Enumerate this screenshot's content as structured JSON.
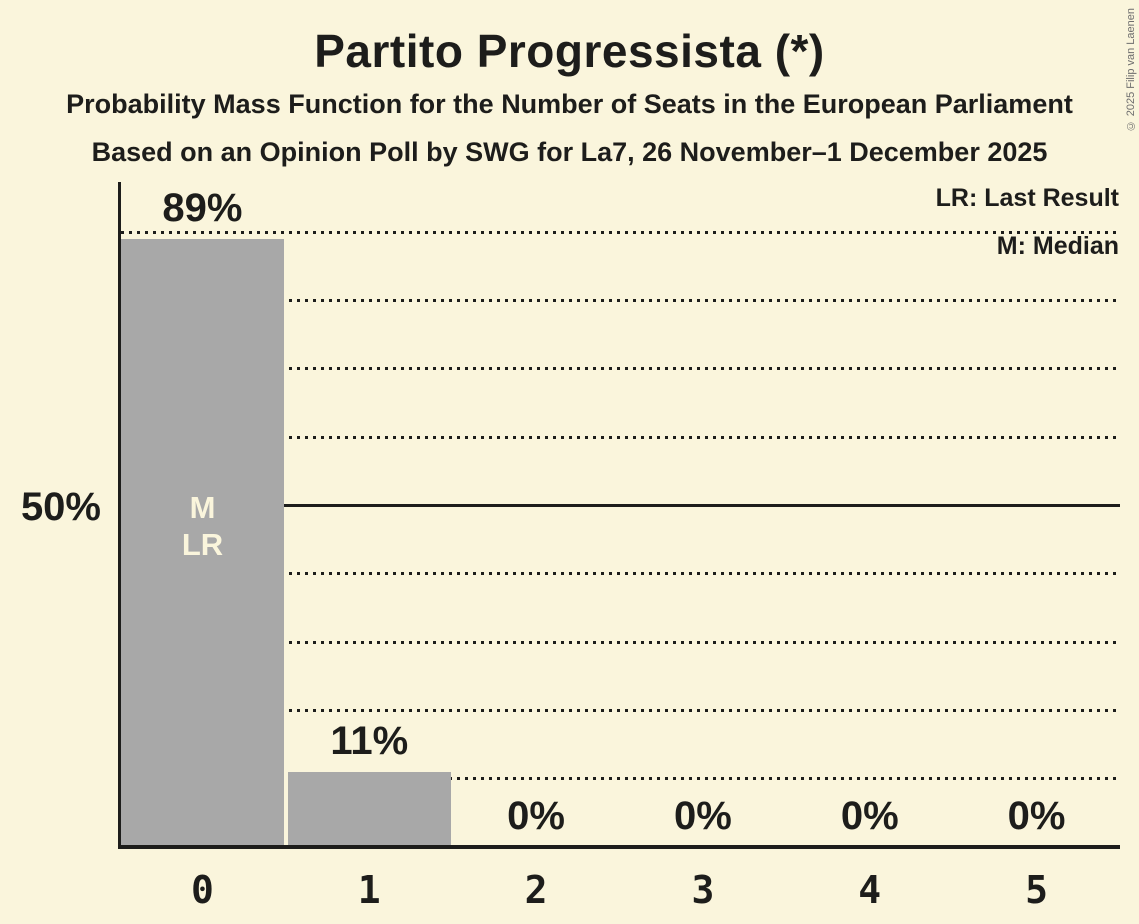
{
  "title": "Partito Progressista (*)",
  "subtitle1": "Probability Mass Function for the Number of Seats in the European Parliament",
  "subtitle2": "Based on an Opinion Poll by SWG for La7, 26 November–1 December 2025",
  "copyright": "© 2025 Filip van Laenen",
  "legend": {
    "lr": "LR: Last Result",
    "m": "M: Median"
  },
  "y_axis_label": "50%",
  "bar_annotations": {
    "median": "M",
    "last_result": "LR"
  },
  "colors": {
    "background": "#FAF5DC",
    "bar": "#A8A8A8",
    "text": "#1D1D1B",
    "copyright_text": "#6E6E6E"
  },
  "chart_data": {
    "type": "bar",
    "title": "Partito Progressista (*)",
    "categories": [
      "0",
      "1",
      "2",
      "3",
      "4",
      "5"
    ],
    "values": [
      89,
      11,
      0,
      0,
      0,
      0
    ],
    "value_labels": [
      "89%",
      "11%",
      "0%",
      "0%",
      "0%",
      "0%"
    ],
    "xlabel": "",
    "ylabel": "",
    "ylim": [
      0,
      97
    ],
    "y_tick": {
      "percent": 50,
      "label": "50%"
    },
    "gridlines_percent": [
      10,
      20,
      30,
      40,
      50,
      60,
      70,
      80,
      90
    ],
    "solid_gridline_percent": 50,
    "grid": "horizontal-dotted",
    "legend_entries": [
      "LR: Last Result",
      "M: Median"
    ],
    "legend_position": "top-right",
    "median_bar_category": "0",
    "last_result_bar_category": "0"
  }
}
